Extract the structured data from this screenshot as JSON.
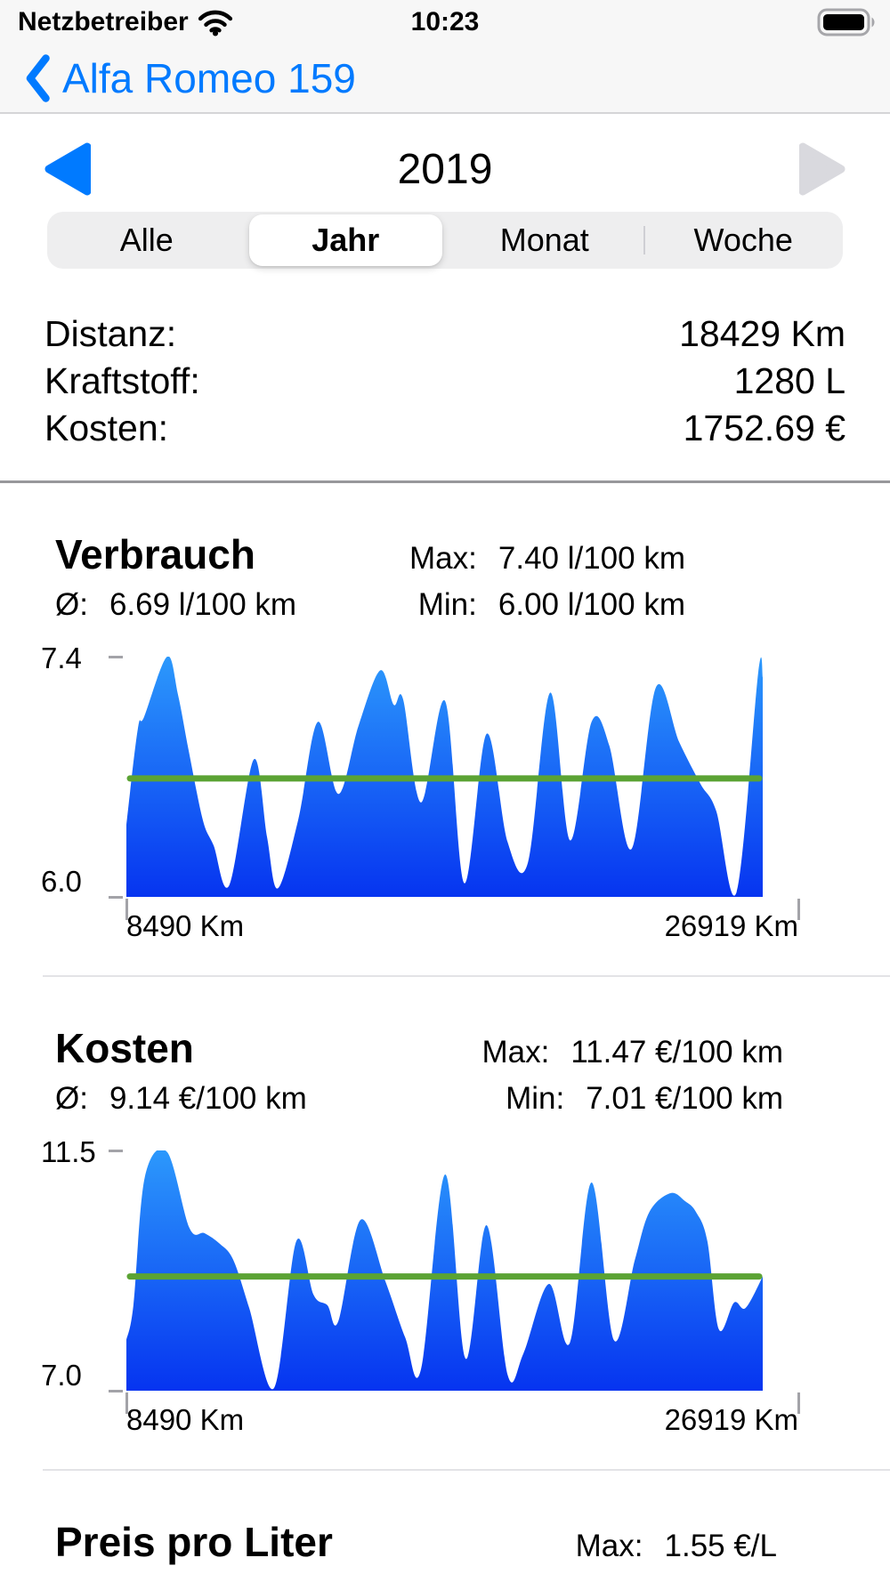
{
  "status_bar": {
    "carrier": "Netzbetreiber",
    "time": "10:23"
  },
  "nav_bar": {
    "back_label": "Alfa Romeo 159"
  },
  "period_selector": {
    "current_period": "2019"
  },
  "segmented_control": {
    "selected": "Jahr",
    "options": [
      "Alle",
      "Jahr",
      "Monat",
      "Woche"
    ]
  },
  "overview": {
    "rows": [
      {
        "label": "Distanz:",
        "value": "18429 Km"
      },
      {
        "label": "Kraftstoff:",
        "value": "1280 L"
      },
      {
        "label": "Kosten:",
        "value": "1752.69 €"
      }
    ]
  },
  "colors": {
    "accent": "#007aff",
    "disabled_control": "#d9d9de",
    "chart_gradient_top": "#2c99fc",
    "chart_gradient_bottom": "#0634f0",
    "average_line": "#5ba334"
  },
  "chart_data": [
    {
      "type": "area",
      "title": "Verbrauch",
      "avg_label": "Ø:",
      "avg_value_label": "6.69 l/100 km",
      "max_label": "Max:",
      "max_value_label": "7.40 l/100 km",
      "min_label": "Min:",
      "min_value_label": "6.00 l/100 km",
      "unit": "l/100 km",
      "y_axis": {
        "top_label": "7.4",
        "bottom_label": "6.0"
      },
      "x_axis": {
        "left_label": "8490 Km",
        "right_label": "26919 Km"
      },
      "ylim": [
        6.0,
        7.4
      ],
      "xlim_km": [
        8490,
        26919
      ],
      "average": 6.69,
      "x": [
        0,
        1.8,
        2.8,
        6.4,
        8.1,
        9.8,
        12,
        13.7,
        16.2,
        20,
        22.1,
        23.8,
        27,
        30.1,
        33.3,
        36.5,
        39.9,
        42,
        43.5,
        46.3,
        50.1,
        53.1,
        56.6,
        59.9,
        63.1,
        66.6,
        69.7,
        73.1,
        75.9,
        79.4,
        83.2,
        86.9,
        90.2,
        92.7,
        95.9,
        99.3,
        100
      ],
      "y": [
        6.42,
        6.98,
        7.05,
        7.4,
        7.18,
        6.85,
        6.45,
        6.3,
        6.07,
        6.8,
        6.35,
        6.05,
        6.45,
        7.02,
        6.6,
        7.0,
        7.32,
        7.12,
        7.15,
        6.55,
        7.14,
        6.08,
        6.95,
        6.32,
        6.2,
        7.19,
        6.33,
        7.02,
        6.88,
        6.28,
        7.22,
        6.9,
        6.66,
        6.5,
        6.03,
        7.31,
        7.28
      ]
    },
    {
      "type": "area",
      "title": "Kosten",
      "avg_label": "Ø:",
      "avg_value_label": "9.14 €/100 km",
      "max_label": "Max:",
      "max_value_label": "11.47 €/100 km",
      "min_label": "Min:",
      "min_value_label": "7.01 €/100 km",
      "unit": "€/100 km",
      "y_axis": {
        "top_label": "11.5",
        "bottom_label": "7.0"
      },
      "x_axis": {
        "left_label": "8490 Km",
        "right_label": "26919 Km"
      },
      "ylim": [
        7.0,
        11.5
      ],
      "xlim_km": [
        8490,
        26919
      ],
      "average": 9.14,
      "x": [
        0,
        1.1,
        2.9,
        6.4,
        9.9,
        12.3,
        14.7,
        16.8,
        19.3,
        23.2,
        26.7,
        29.4,
        31.6,
        33.3,
        36.8,
        40.7,
        43.8,
        46.3,
        50.1,
        53.3,
        56.6,
        59.9,
        62.4,
        66.4,
        69.7,
        73.1,
        76.6,
        79.9,
        82.2,
        85.5,
        87.8,
        89.5,
        91.3,
        93.1,
        95.5,
        97.3,
        100
      ],
      "y": [
        7.95,
        8.6,
        11.0,
        11.47,
        10.05,
        9.95,
        9.75,
        9.45,
        8.55,
        7.05,
        9.8,
        8.8,
        8.6,
        8.3,
        10.2,
        9.05,
        8.0,
        7.4,
        11.05,
        7.6,
        10.1,
        7.3,
        7.7,
        9.0,
        7.9,
        10.9,
        7.95,
        9.45,
        10.35,
        10.7,
        10.55,
        10.35,
        9.8,
        8.15,
        8.65,
        8.55,
        9.14
      ]
    },
    {
      "type": "area",
      "title": "Preis pro Liter",
      "max_label": "Max:",
      "max_value_label": "1.55 €/L",
      "unit": "€/L"
    }
  ]
}
